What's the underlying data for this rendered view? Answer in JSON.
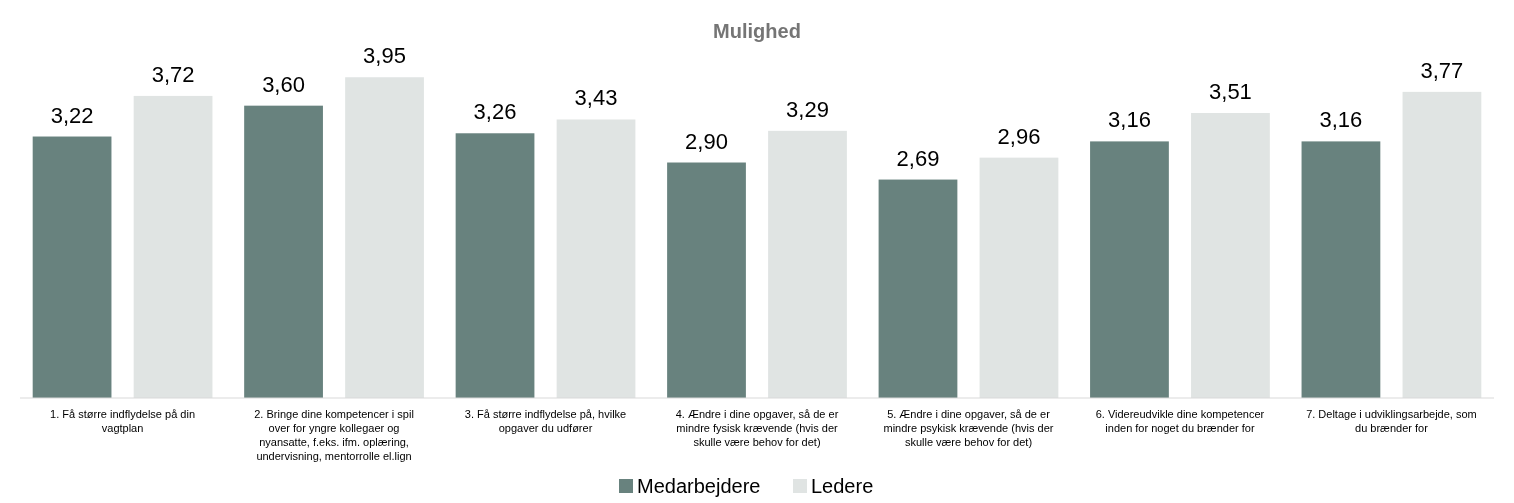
{
  "chart_data": {
    "type": "bar",
    "title": "Mulighed",
    "categories": [
      "1. Få større indflydelse på din vagtplan",
      "2. Bringe dine kompetencer i spil over for yngre kollegaer og nyansatte, f.eks. ifm. oplæring, undervisning, mentorrolle el.lign",
      "3. Få større indflydelse på, hvilke opgaver du udfører",
      "4. Ændre i dine opgaver, så de er mindre fysisk krævende (hvis der skulle være behov for det)",
      "5. Ændre i dine opgaver, så de er mindre psykisk krævende (hvis der skulle være behov for det)",
      "6. Videreudvikle dine kompetencer inden for noget du brænder for",
      "7. Deltage i udviklingsarbejde, som du brænder for"
    ],
    "series": [
      {
        "name": "Medarbejdere",
        "color": "#68827e",
        "values": [
          3.22,
          3.6,
          3.26,
          2.9,
          2.69,
          3.16,
          3.16
        ],
        "value_labels": [
          "3,22",
          "3,60",
          "3,26",
          "2,90",
          "2,69",
          "3,16",
          "3,16"
        ]
      },
      {
        "name": "Ledere",
        "color": "#e0e4e3",
        "values": [
          3.72,
          3.95,
          3.43,
          3.29,
          2.96,
          3.51,
          3.77
        ],
        "value_labels": [
          "3,72",
          "3,95",
          "3,43",
          "3,29",
          "2,96",
          "3,51",
          "3,77"
        ]
      }
    ],
    "legend": "bottom",
    "grid": false
  }
}
